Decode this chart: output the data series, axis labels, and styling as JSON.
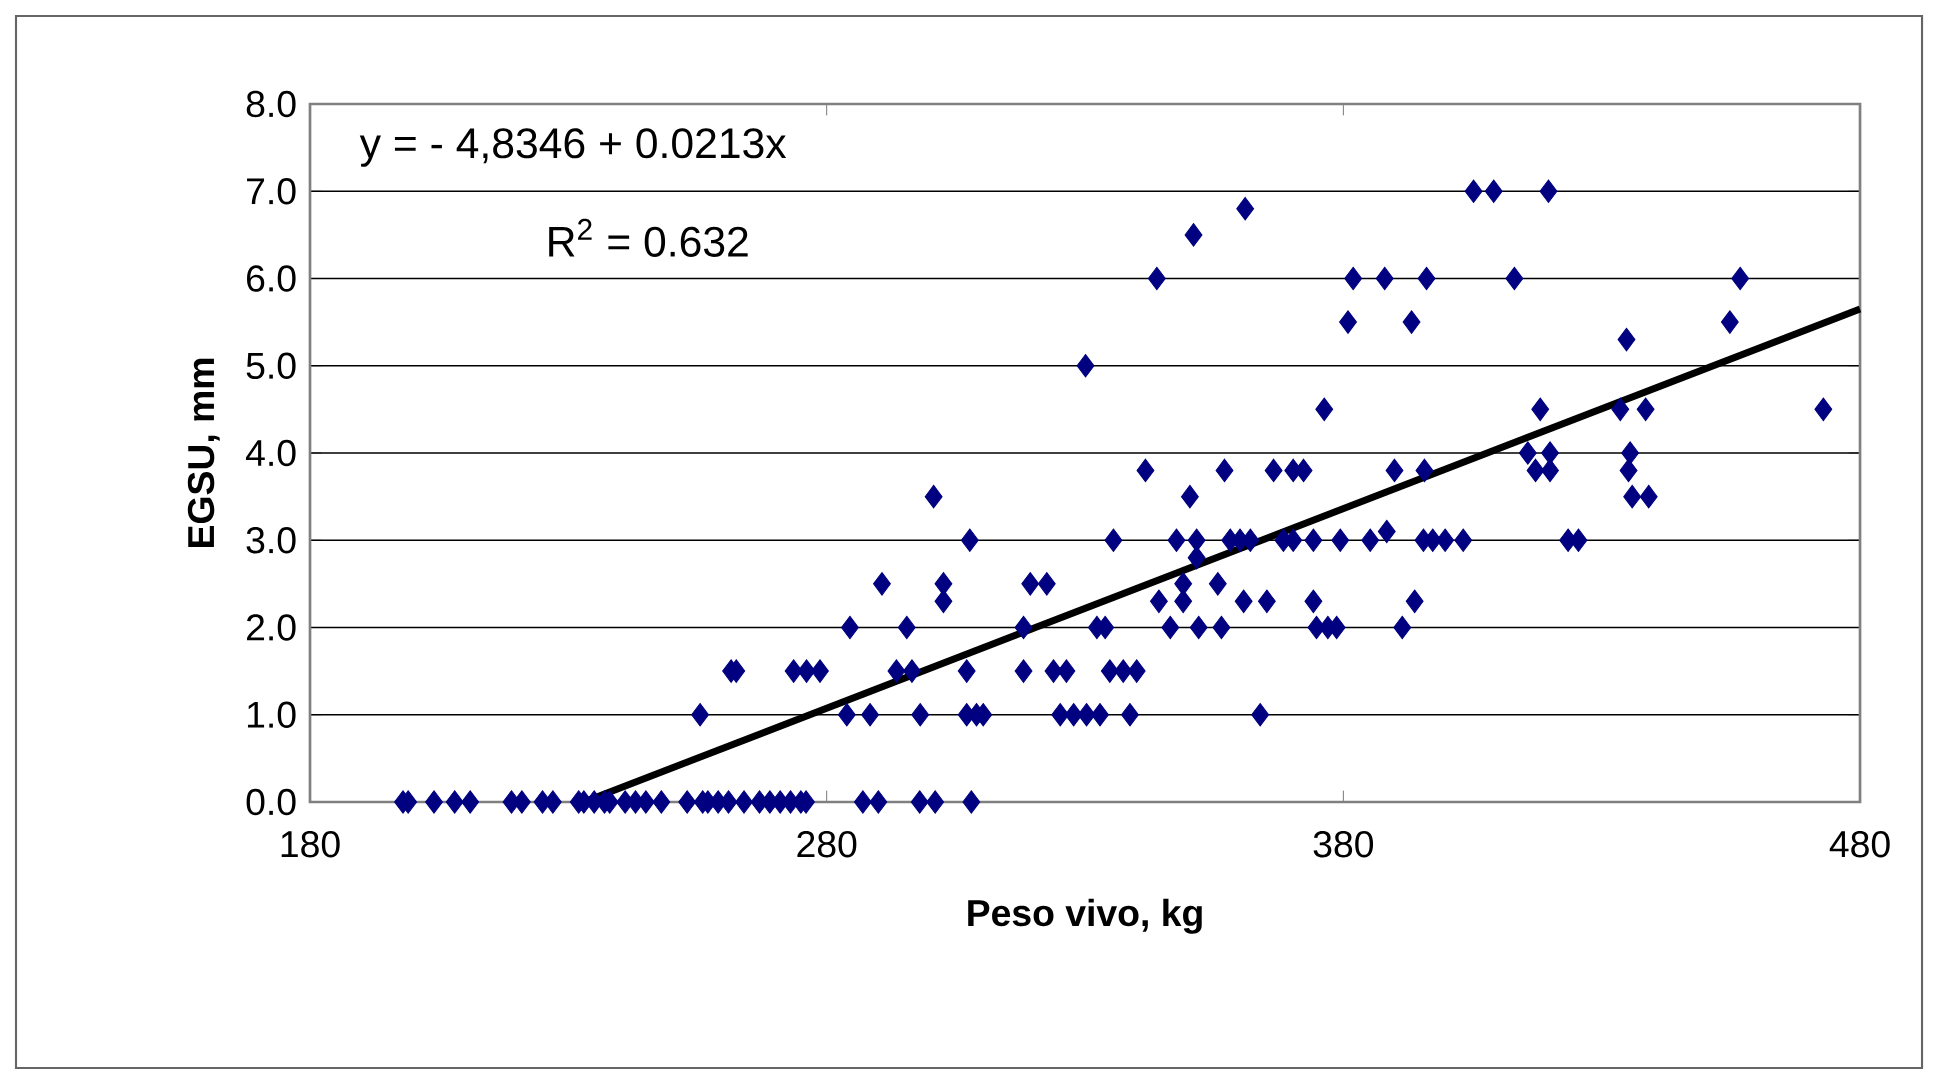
{
  "chart_data": {
    "type": "scatter",
    "xlabel": "Peso vivo, kg",
    "ylabel": "EGSU, mm",
    "xlim": [
      180,
      480
    ],
    "xticks": [
      180,
      280,
      380,
      480
    ],
    "ylim": [
      0,
      8
    ],
    "yticks": [
      {
        "value": 0,
        "label": "0.0"
      },
      {
        "value": 1,
        "label": "1.0"
      },
      {
        "value": 2,
        "label": "2.0"
      },
      {
        "value": 3,
        "label": "3.0"
      },
      {
        "value": 4,
        "label": "4.0"
      },
      {
        "value": 5,
        "label": "5.0"
      },
      {
        "value": 6,
        "label": "6.0"
      },
      {
        "value": 7,
        "label": "7.0"
      },
      {
        "value": 8,
        "label": "8.0"
      }
    ],
    "grid": "y",
    "marker": "diamond",
    "annotations": [
      "y = - 4,8346 + 0.0213x",
      "R$^{2}$ = 0.632"
    ],
    "series": [
      {
        "color": "#000080",
        "x": [
          198,
          199,
          204,
          208,
          211,
          219,
          221,
          225,
          227,
          232,
          233,
          235,
          237,
          238,
          241,
          243,
          245,
          248,
          253,
          256,
          257,
          259,
          261,
          264,
          267,
          269,
          271,
          273,
          275,
          276,
          287,
          290,
          298,
          301,
          308,
          255.5,
          261.5,
          262.5,
          273.6,
          276.1,
          278.7,
          283.9,
          284.5,
          288.4,
          290.7,
          293.5,
          296.5,
          295.5,
          298.1,
          300.7,
          302.6,
          302.6,
          307.1,
          307.7,
          307.1,
          309,
          310.3,
          318.1,
          318.1,
          319.4,
          322.6,
          323.9,
          326.4,
          325.2,
          327.8,
          330.3,
          330.1,
          332.3,
          332.9,
          338.7,
          363.9,
          334.8,
          337.4,
          340,
          333.9,
          335.5,
          341.7,
          343.9,
          344.3,
          346.5,
          347.7,
          349,
          349,
          350.3,
          351,
          351.6,
          351.6,
          352,
          355.7,
          356.4,
          357,
          358.1,
          360,
          362,
          361,
          360.7,
          365.2,
          366.5,
          370.3,
          372.3,
          368.4,
          370.3,
          374.2,
          379.4,
          374.2,
          374.8,
          377,
          378.7,
          376.3,
          380.9,
          381.9,
          385.2,
          388.4,
          388,
          389.9,
          391.4,
          393.2,
          393.8,
          395.7,
          396.1,
          395.5,
          397.3,
          399.7,
          403.2,
          405.2,
          409.1,
          413.1,
          419.7,
          415.7,
          420,
          417.2,
          420,
          418.1,
          423.5,
          425.5,
          434.8,
          433.6,
          438.5,
          435.5,
          435.2,
          435.9,
          439.1,
          454.8,
          456.8,
          472.9
        ],
        "values": [
          0,
          0,
          0,
          0,
          0,
          0,
          0,
          0,
          0,
          0,
          0,
          0,
          0,
          0,
          0,
          0,
          0,
          0,
          0,
          0,
          0,
          0,
          0,
          0,
          0,
          0,
          0,
          0,
          0,
          0,
          0,
          0,
          0,
          0,
          0,
          1,
          1.5,
          1.5,
          1.5,
          1.5,
          1.5,
          1,
          2,
          1,
          2.5,
          1.5,
          1.5,
          2,
          1,
          3.5,
          2.5,
          2.3,
          1.5,
          3,
          1,
          1,
          1,
          2,
          1.5,
          2.5,
          2.5,
          1.5,
          1.5,
          1,
          1,
          1,
          5,
          2,
          1,
          1,
          1,
          1.5,
          1.5,
          1.5,
          2,
          3,
          3.8,
          6,
          2.3,
          2,
          3,
          2.5,
          2.3,
          3.5,
          6.5,
          3,
          2.8,
          2,
          2.5,
          2,
          3.8,
          3,
          3,
          3,
          6.8,
          2.3,
          2.3,
          3.8,
          3.8,
          3.8,
          3,
          3,
          3,
          3,
          2.3,
          2,
          2,
          2,
          4.5,
          5.5,
          6,
          3,
          3.1,
          6,
          3.8,
          2,
          5.5,
          2.3,
          3.8,
          6,
          3,
          3,
          3,
          3,
          7,
          7,
          6,
          7,
          4,
          4,
          3.8,
          3.8,
          4.5,
          3,
          3,
          5.3,
          4.5,
          4.5,
          4,
          3.8,
          3.5,
          3.5,
          5.5,
          6,
          4.5
        ]
      },
      {
        "type": "line",
        "color": "#000000",
        "marker": "none",
        "x": [
          233,
          480
        ],
        "values": [
          0,
          5.65
        ]
      }
    ]
  }
}
